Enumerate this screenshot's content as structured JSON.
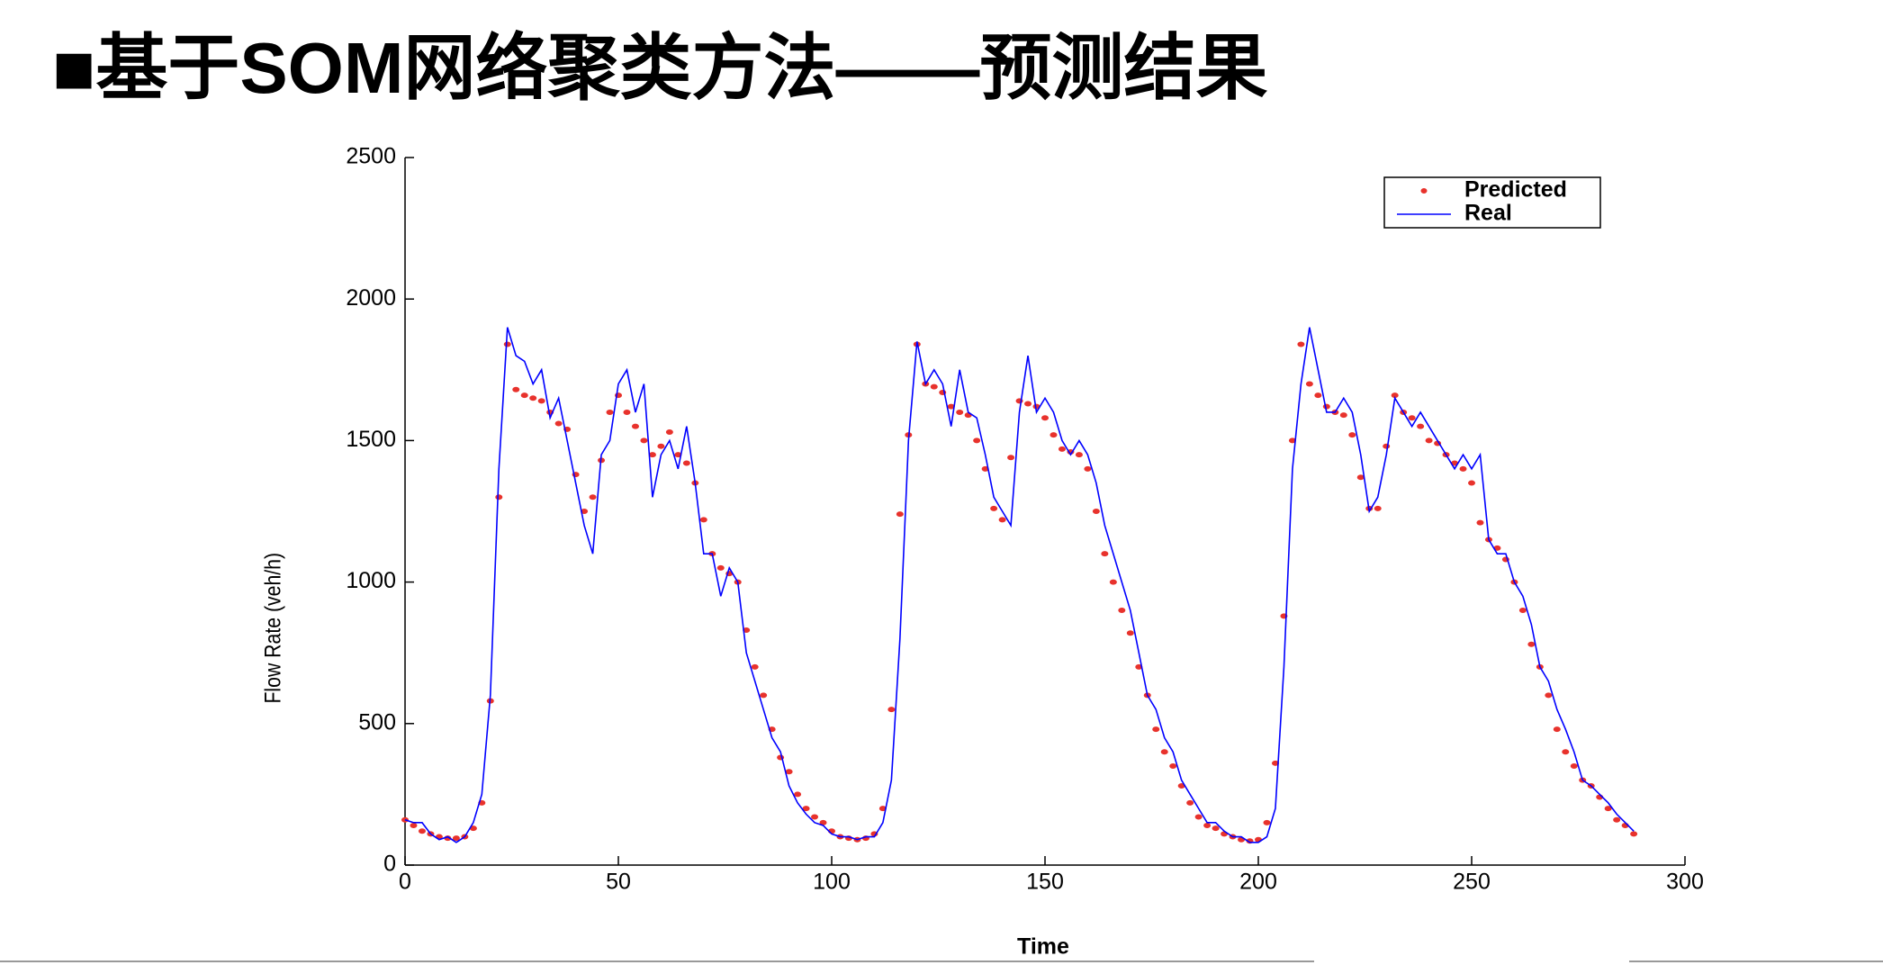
{
  "chart_data": {
    "type": "line",
    "title": "■基于SOM网络聚类方法——预测结果",
    "xlabel": "Time",
    "ylabel": "Flow Rate (veh/h)",
    "xlim": [
      0,
      300
    ],
    "xticks": [
      0,
      50,
      100,
      150,
      200,
      250,
      300
    ],
    "ylim": [
      0,
      2500
    ],
    "yticks": [
      0,
      500,
      1000,
      1500,
      2000,
      2500
    ],
    "legend": "top-right",
    "x": [
      0,
      2,
      4,
      6,
      8,
      10,
      12,
      14,
      16,
      18,
      20,
      22,
      24,
      26,
      28,
      30,
      32,
      34,
      36,
      38,
      40,
      42,
      44,
      46,
      48,
      50,
      52,
      54,
      56,
      58,
      60,
      62,
      64,
      66,
      68,
      70,
      72,
      74,
      76,
      78,
      80,
      82,
      84,
      86,
      88,
      90,
      92,
      94,
      96,
      98,
      100,
      102,
      104,
      106,
      108,
      110,
      112,
      114,
      116,
      118,
      120,
      122,
      124,
      126,
      128,
      130,
      132,
      134,
      136,
      138,
      140,
      142,
      144,
      146,
      148,
      150,
      152,
      154,
      156,
      158,
      160,
      162,
      164,
      166,
      168,
      170,
      172,
      174,
      176,
      178,
      180,
      182,
      184,
      186,
      188,
      190,
      192,
      194,
      196,
      198,
      200,
      202,
      204,
      206,
      208,
      210,
      212,
      214,
      216,
      218,
      220,
      222,
      224,
      226,
      228,
      230,
      232,
      234,
      236,
      238,
      240,
      242,
      244,
      246,
      248,
      250,
      252,
      254,
      256,
      258,
      260,
      262,
      264,
      266,
      268,
      270,
      272,
      274,
      276,
      278,
      280,
      282,
      284,
      286,
      288
    ],
    "series": [
      {
        "name": "Predicted",
        "color": "#e8322c",
        "style": "points",
        "values": [
          160,
          140,
          120,
          110,
          100,
          95,
          95,
          100,
          130,
          220,
          580,
          1300,
          1840,
          1680,
          1660,
          1650,
          1640,
          1600,
          1560,
          1540,
          1380,
          1250,
          1300,
          1430,
          1600,
          1660,
          1600,
          1550,
          1500,
          1450,
          1480,
          1530,
          1450,
          1420,
          1350,
          1220,
          1100,
          1050,
          1030,
          1000,
          830,
          700,
          600,
          480,
          380,
          330,
          250,
          200,
          170,
          150,
          120,
          100,
          95,
          90,
          95,
          110,
          200,
          550,
          1240,
          1520,
          1840,
          1700,
          1690,
          1670,
          1620,
          1600,
          1590,
          1500,
          1400,
          1260,
          1220,
          1440,
          1640,
          1630,
          1620,
          1580,
          1520,
          1470,
          1460,
          1450,
          1400,
          1250,
          1100,
          1000,
          900,
          820,
          700,
          600,
          480,
          400,
          350,
          280,
          220,
          170,
          140,
          130,
          110,
          100,
          90,
          85,
          90,
          150,
          360,
          880,
          1500,
          1840,
          1700,
          1660,
          1620,
          1600,
          1590,
          1520,
          1370,
          1260,
          1260,
          1480,
          1660,
          1600,
          1580,
          1550,
          1500,
          1490,
          1450,
          1420,
          1400,
          1350,
          1210,
          1150,
          1120,
          1080,
          1000,
          900,
          780,
          700,
          600,
          480,
          400,
          350,
          300,
          280,
          240,
          200,
          160,
          140,
          110
        ]
      },
      {
        "name": "Real",
        "color": "#0000ff",
        "style": "line",
        "values": [
          160,
          150,
          150,
          110,
          90,
          100,
          80,
          100,
          150,
          250,
          600,
          1400,
          1900,
          1800,
          1780,
          1700,
          1750,
          1580,
          1650,
          1500,
          1350,
          1200,
          1100,
          1450,
          1500,
          1700,
          1750,
          1600,
          1700,
          1300,
          1450,
          1500,
          1400,
          1550,
          1350,
          1100,
          1100,
          950,
          1050,
          1000,
          750,
          650,
          550,
          450,
          400,
          280,
          220,
          180,
          150,
          140,
          110,
          100,
          100,
          90,
          100,
          100,
          150,
          300,
          800,
          1500,
          1850,
          1700,
          1750,
          1700,
          1550,
          1750,
          1600,
          1580,
          1450,
          1300,
          1250,
          1200,
          1600,
          1800,
          1600,
          1650,
          1600,
          1500,
          1450,
          1500,
          1450,
          1350,
          1200,
          1100,
          1000,
          900,
          750,
          600,
          550,
          450,
          400,
          300,
          250,
          200,
          150,
          150,
          120,
          100,
          100,
          80,
          80,
          100,
          200,
          700,
          1400,
          1700,
          1900,
          1750,
          1600,
          1600,
          1650,
          1600,
          1450,
          1250,
          1300,
          1450,
          1650,
          1600,
          1550,
          1600,
          1550,
          1500,
          1450,
          1400,
          1450,
          1400,
          1450,
          1150,
          1100,
          1100,
          1000,
          950,
          850,
          700,
          650,
          550,
          480,
          400,
          300,
          280,
          250,
          220,
          180,
          150,
          120
        ]
      }
    ]
  }
}
